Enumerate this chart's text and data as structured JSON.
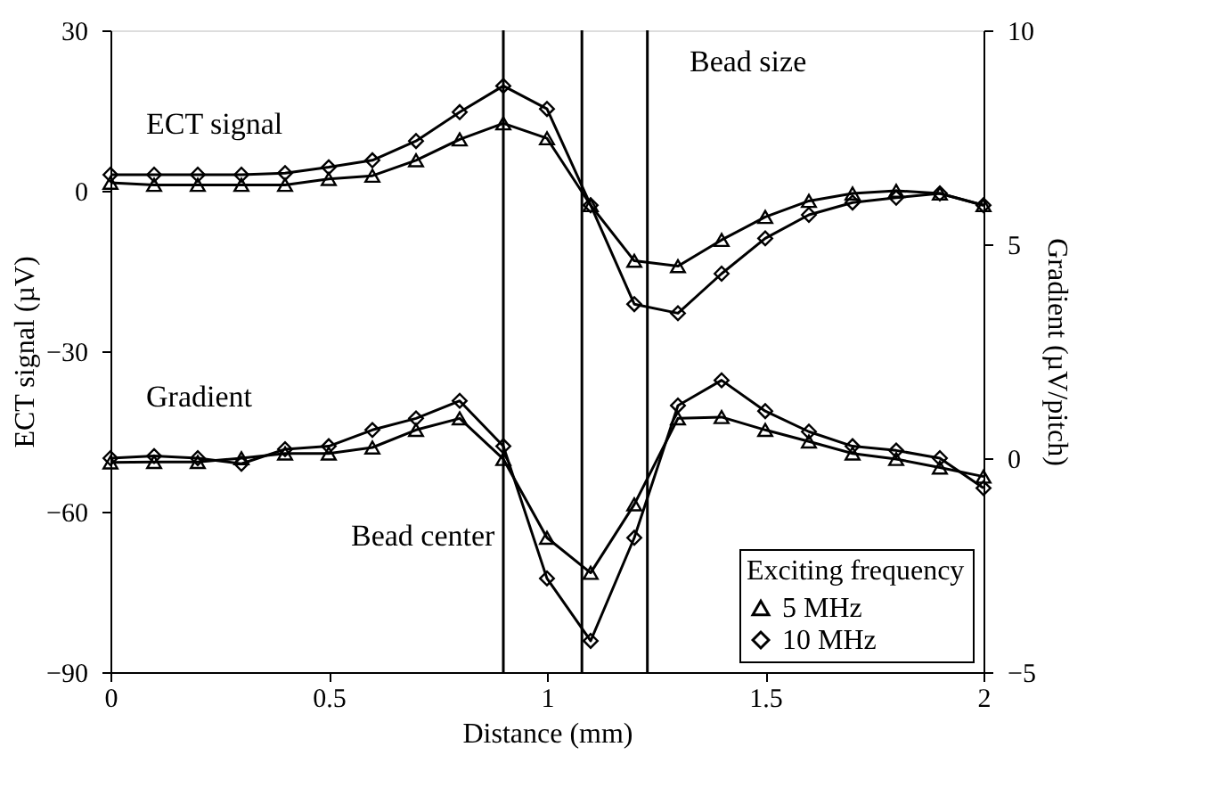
{
  "chart_data": {
    "type": "line",
    "xlabel": "Distance (mm)",
    "ylabel": "ECT signal (µV)",
    "y2label": "Gradient (µV/pitch)",
    "legend_title": "Exciting frequency",
    "x": [
      0,
      0.1,
      0.2,
      0.3,
      0.4,
      0.5,
      0.6,
      0.7,
      0.8,
      0.9,
      1.0,
      1.1,
      1.2,
      1.3,
      1.4,
      1.5,
      1.6,
      1.7,
      1.8,
      1.9,
      2.0
    ],
    "series": [
      {
        "name": "5 MHz",
        "color": "#000000",
        "marker": "triangle",
        "values": [
          1.5,
          1.1,
          1.1,
          1.1,
          1.1,
          2.2,
          2.8,
          5.7,
          9.6,
          12.6,
          9.8,
          -2.7,
          -13.1,
          -14.1,
          -9.2,
          -4.9,
          -1.9,
          -0.5,
          0,
          -0.5,
          -2.7
        ]
      },
      {
        "name": "10 MHz",
        "color": "#000000",
        "marker": "diamond",
        "values": [
          3,
          3,
          3,
          3,
          3.3,
          4.4,
          5.7,
          9.3,
          14.7,
          19.6,
          15.3,
          -2.7,
          -21.2,
          -22.9,
          -15.5,
          -8.9,
          -4.5,
          -2.2,
          -1.3,
          -0.5,
          -2.7
        ]
      },
      {
        "color": "#000000",
        "marker": "triangle",
        "axis": "y2",
        "values": [
          -0.1,
          -0.09,
          -0.09,
          0,
          0.11,
          0.11,
          0.25,
          0.66,
          0.93,
          -0.02,
          -1.86,
          -2.68,
          -1.08,
          0.93,
          0.96,
          0.66,
          0.39,
          0.11,
          -0.02,
          -0.22,
          -0.43
        ]
      },
      {
        "color": "#000000",
        "marker": "diamond",
        "axis": "y2",
        "values": [
          0,
          0.05,
          0,
          -0.13,
          0.21,
          0.28,
          0.66,
          0.93,
          1.34,
          0.28,
          -2.81,
          -4.27,
          -1.86,
          1.23,
          1.82,
          1.1,
          0.62,
          0.28,
          0.18,
          0,
          -0.7
        ]
      }
    ],
    "xlim": [
      0,
      2
    ],
    "xticks": [
      0,
      0.5,
      1,
      1.5,
      2
    ],
    "ylim": [
      -90,
      30
    ],
    "yticks": [
      -90,
      -60,
      -30,
      0,
      30
    ],
    "y2lim": [
      -5,
      10
    ],
    "y2ticks": [
      -5,
      0,
      5,
      10
    ],
    "ref_lines": [
      {
        "axis": "x",
        "value": 0.9,
        "label": null
      },
      {
        "axis": "x",
        "value": 1.23,
        "label": null
      },
      {
        "axis": "x",
        "value": 1.08,
        "label": null
      }
    ],
    "annotations": [
      "ECT signal",
      "Gradient",
      "Bead size",
      "Bead center"
    ],
    "grid": false,
    "legend": "bottom right",
    "line_style": "solid"
  }
}
